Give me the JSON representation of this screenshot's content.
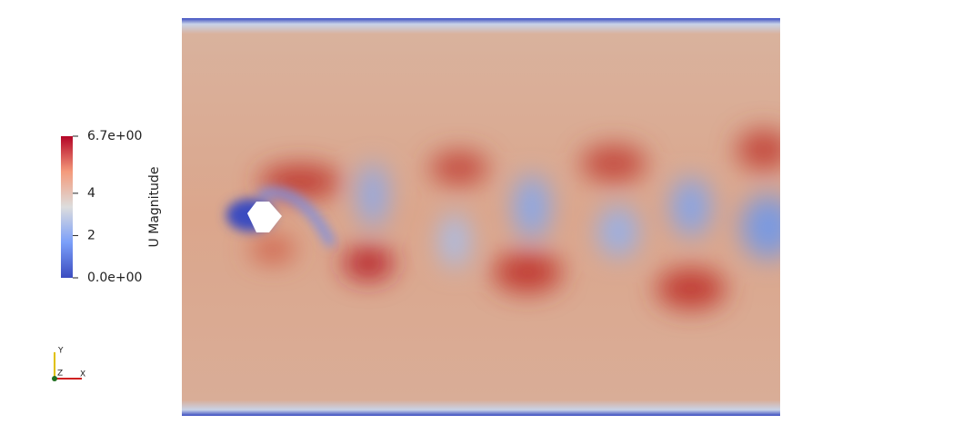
{
  "colorbar": {
    "title": "U Magnitude",
    "range": [
      {
        "value": 0,
        "label": "0.0e+00"
      },
      {
        "value": 6.7,
        "label": "6.7e+00"
      }
    ],
    "ticks": [
      2,
      4
    ]
  },
  "axes": {
    "x": "X",
    "y": "Y",
    "z": "Z"
  }
}
